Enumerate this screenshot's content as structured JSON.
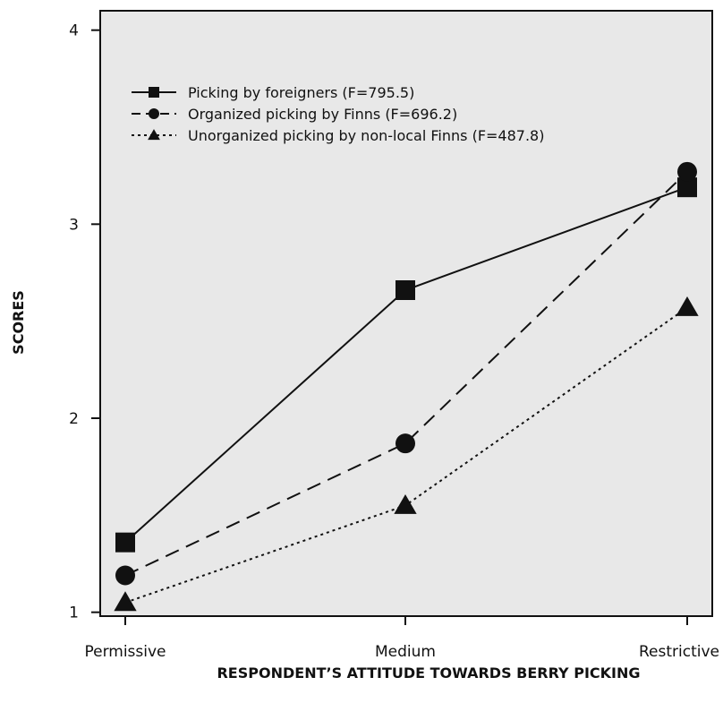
{
  "chart_data": {
    "type": "line",
    "xlabel": "RESPONDENT’S ATTITUDE TOWARDS BERRY PICKING",
    "ylabel": "SCORES",
    "categories": [
      "Permissive",
      "Medium",
      "Restrictive"
    ],
    "ylim": [
      0.98,
      4.1
    ],
    "yticks": [
      1,
      2,
      3,
      4
    ],
    "grid": false,
    "legend_position": "top-left",
    "colors": {
      "plot_background": "#e8e8e8",
      "line": "#111111"
    },
    "series": [
      {
        "name": "Picking by foreigners (F=795.5)",
        "values": [
          1.36,
          2.66,
          3.19
        ],
        "line_style": "solid",
        "marker": "square"
      },
      {
        "name": "Organized picking by Finns (F=696.2)",
        "values": [
          1.19,
          1.87,
          3.27
        ],
        "line_style": "dashed",
        "marker": "circle"
      },
      {
        "name": "Unorganized picking by non-local Finns (F=487.8)",
        "values": [
          1.05,
          1.55,
          2.57
        ],
        "line_style": "dotted",
        "marker": "triangle"
      }
    ]
  }
}
